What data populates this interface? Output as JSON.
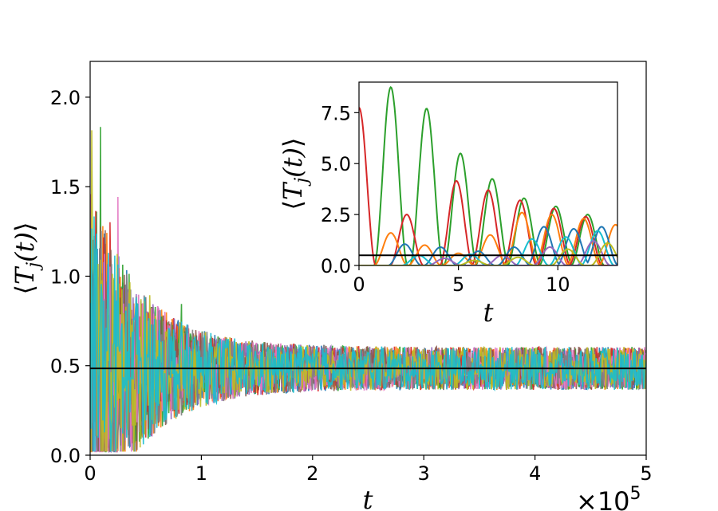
{
  "chart_data": [
    {
      "type": "line",
      "xlabel": "t",
      "ylabel": "⟨T_j(t)⟩",
      "xlim": [
        0,
        500000
      ],
      "ylim": [
        0,
        2.2
      ],
      "x_ticks": [
        0,
        1,
        2,
        3,
        4,
        5
      ],
      "x_tick_labels": [
        "0",
        "1",
        "2",
        "3",
        "4",
        "5"
      ],
      "x_offset_label": "×10",
      "x_offset_exponent": "5",
      "y_ticks": [
        0.0,
        0.5,
        1.0,
        1.5,
        2.0
      ],
      "y_tick_labels": [
        "0.0",
        "0.5",
        "1.0",
        "1.5",
        "2.0"
      ],
      "reference_line_y": 0.485,
      "series_colors": [
        "#1f77b4",
        "#ff7f0e",
        "#2ca02c",
        "#d62728",
        "#9467bd",
        "#8c564b",
        "#e377c2",
        "#7f7f7f",
        "#bcbd22",
        "#17becf"
      ],
      "description": "Many noisy series decaying from spikes up to ~2.2 near t=0 toward a fluctuating band around 0.5 (roughly 0.3–0.7) for t up to 5×10^5."
    },
    {
      "type": "line",
      "xlabel": "t",
      "ylabel": "⟨T_j(t)⟩",
      "xlim": [
        0,
        13
      ],
      "ylim": [
        0,
        9
      ],
      "x_ticks": [
        0,
        5,
        10
      ],
      "x_tick_labels": [
        "0",
        "5",
        "10"
      ],
      "y_ticks": [
        0.0,
        2.5,
        5.0,
        7.5
      ],
      "y_tick_labels": [
        "0.0",
        "2.5",
        "5.0",
        "7.5"
      ],
      "reference_line_y": 0.5,
      "series": [
        {
          "color": "#2ca02c",
          "peaks": [
            [
              1.6,
              8.75
            ],
            [
              3.4,
              7.7
            ],
            [
              5.1,
              5.5
            ],
            [
              6.7,
              4.25
            ],
            [
              8.3,
              3.3
            ],
            [
              9.9,
              2.9
            ],
            [
              11.5,
              2.5
            ]
          ]
        },
        {
          "color": "#d62728",
          "peaks": [
            [
              0,
              7.75
            ],
            [
              2.4,
              2.5
            ],
            [
              4.9,
              4.15
            ],
            [
              6.5,
              3.7
            ],
            [
              8.1,
              3.2
            ],
            [
              9.8,
              2.8
            ],
            [
              11.4,
              2.4
            ]
          ]
        },
        {
          "color": "#ff7f0e",
          "peaks": [
            [
              1.6,
              1.6
            ],
            [
              3.3,
              1.0
            ],
            [
              5.0,
              0.6
            ],
            [
              6.6,
              1.5
            ],
            [
              8.2,
              2.6
            ],
            [
              9.7,
              2.5
            ],
            [
              11.3,
              2.3
            ],
            [
              12.9,
              2.0
            ]
          ]
        },
        {
          "color": "#1f77b4",
          "peaks": [
            [
              2.3,
              1.05
            ],
            [
              4.1,
              0.9
            ],
            [
              6.0,
              0.7
            ],
            [
              7.8,
              0.9
            ],
            [
              9.3,
              1.9
            ],
            [
              10.8,
              1.8
            ],
            [
              12.2,
              1.9
            ]
          ]
        },
        {
          "color": "#17becf",
          "peaks": [
            [
              3.0,
              0.5
            ],
            [
              5.6,
              0.55
            ],
            [
              8.7,
              1.3
            ],
            [
              10.4,
              1.4
            ],
            [
              12.0,
              1.7
            ]
          ]
        },
        {
          "color": "#9467bd",
          "peaks": [
            [
              4.3,
              0.35
            ],
            [
              7.2,
              0.5
            ],
            [
              9.6,
              0.9
            ],
            [
              11.8,
              1.2
            ]
          ]
        },
        {
          "color": "#bcbd22",
          "peaks": [
            [
              5.8,
              0.25
            ],
            [
              8.0,
              0.4
            ],
            [
              10.5,
              0.8
            ],
            [
              12.5,
              1.1
            ]
          ]
        }
      ]
    }
  ]
}
